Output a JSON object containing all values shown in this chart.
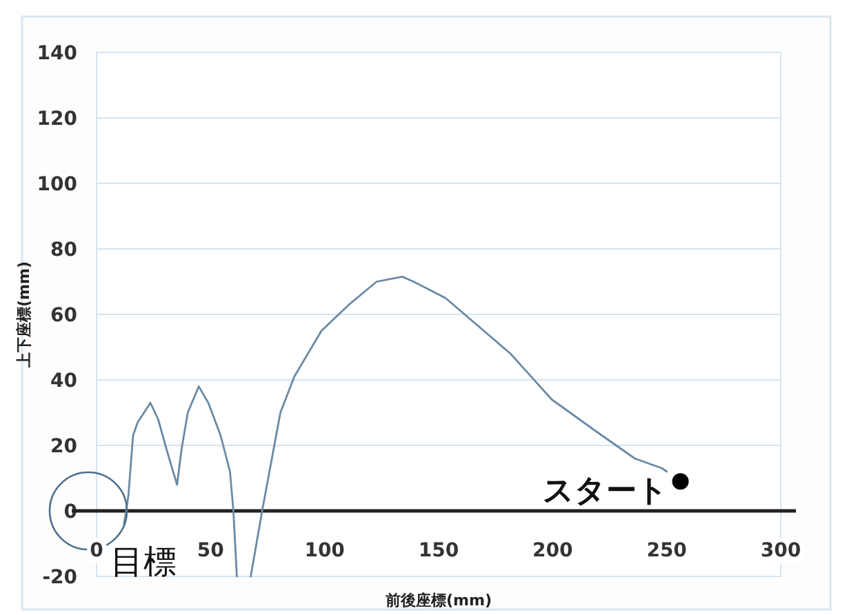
{
  "chart_data": {
    "type": "line",
    "xlabel": "前後座標(mm)",
    "ylabel": "上下座標(mm)",
    "xlim": [
      0,
      300
    ],
    "ylim": [
      -20,
      140
    ],
    "xticks": [
      0,
      50,
      100,
      150,
      200,
      250,
      300
    ],
    "yticks": [
      -20,
      0,
      20,
      40,
      60,
      80,
      100,
      120,
      140
    ],
    "grid": "y",
    "series": [
      {
        "color": "#6a8aa6",
        "x": [
          12,
          13,
          14,
          16,
          18,
          23.6,
          27,
          31,
          35.3,
          37.3,
          40,
          44.8,
          49,
          54.4,
          58.5,
          60,
          61.5,
          64,
          67.6,
          72.6,
          80.6,
          86.7,
          98.6,
          110.7,
          122.8,
          134,
          139,
          153,
          181.5,
          199.6,
          219.6,
          236,
          248,
          250
        ],
        "values": [
          -4,
          0,
          5,
          23,
          27,
          33,
          28,
          18,
          8,
          19,
          30,
          38,
          33,
          23,
          12,
          0,
          -20,
          null,
          -20,
          0,
          30,
          41,
          55,
          63,
          70,
          71.5,
          70,
          65,
          48,
          34,
          24,
          16,
          13,
          12
        ]
      },
      {
        "type": "scatter",
        "color": "#000000",
        "marker": "circle",
        "x": [
          256
        ],
        "values": [
          9
        ]
      }
    ],
    "annotations": [
      "目標",
      {
        "text": "スタート",
        "x": 256,
        "y": 9
      }
    ]
  }
}
